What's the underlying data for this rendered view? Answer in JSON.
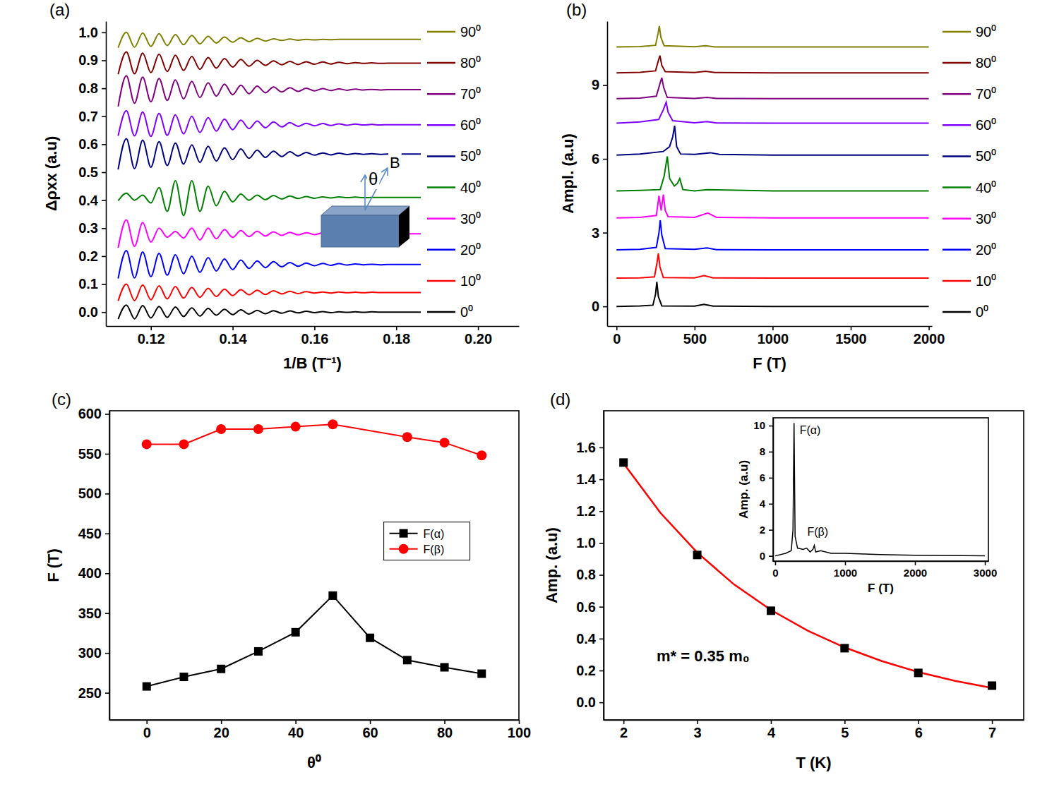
{
  "chart_data": [
    {
      "type": "line",
      "panel_label": "(a)",
      "x_label": "1/B (T⁻¹)",
      "y_label": "Δρxx (a.u)",
      "x": [
        0.112,
        0.114,
        0.116,
        0.118,
        0.12,
        0.122,
        0.124,
        0.126,
        0.128,
        0.13,
        0.132,
        0.134,
        0.136,
        0.138,
        0.14,
        0.142,
        0.144,
        0.146,
        0.148,
        0.15,
        0.152,
        0.154,
        0.156,
        0.158,
        0.16,
        0.162,
        0.164,
        0.166,
        0.168,
        0.17,
        0.172,
        0.174,
        0.176,
        0.178,
        0.18,
        0.182,
        0.184,
        0.186
      ],
      "xlim": [
        0.109,
        0.21
      ],
      "xticks": [
        0.12,
        0.14,
        0.16,
        0.18,
        {
          "value": 0.2,
          "label": "0.20"
        }
      ],
      "ylim": [
        -0.05,
        1.04
      ],
      "yticks": [
        {
          "value": 0,
          "label": "0.0"
        },
        0.1,
        0.2,
        0.3,
        0.4,
        0.5,
        0.6,
        0.7,
        0.8,
        0.9,
        {
          "value": 1,
          "label": "1.0"
        }
      ],
      "legend": "right",
      "annotations": [
        "θ",
        "B"
      ],
      "series": [
        {
          "name": "0⁰",
          "color": "#000000",
          "values": [
            -0.025,
            0.025,
            -0.024,
            0.023,
            -0.021,
            0.02,
            -0.019,
            0.018,
            -0.016,
            0.015,
            -0.014,
            0.013,
            -0.011,
            0.01,
            -0.009,
            0.008,
            -0.007,
            0.006,
            -0.006,
            0.005,
            -0.004,
            0.004,
            -0.003,
            0.003,
            -0.002,
            0.002,
            -0.002,
            0.001,
            -0.001,
            0.001,
            -0.001,
            0.001,
            0,
            0,
            0,
            0,
            0,
            0
          ]
        },
        {
          "name": "10⁰",
          "color": "#ff0000",
          "values": [
            0.04,
            0.1,
            0.041,
            0.097,
            0.044,
            0.094,
            0.047,
            0.091,
            0.05,
            0.088,
            0.053,
            0.085,
            0.056,
            0.082,
            0.059,
            0.08,
            0.062,
            0.078,
            0.063,
            0.076,
            0.065,
            0.074,
            0.066,
            0.073,
            0.068,
            0.072,
            0.068,
            0.072,
            0.069,
            0.071,
            0.069,
            0.071,
            0.07,
            0.07,
            0.07,
            0.07,
            0.07,
            0.07
          ]
        },
        {
          "name": "20⁰",
          "color": "#0000ff",
          "values": [
            0.12,
            0.22,
            0.122,
            0.215,
            0.127,
            0.21,
            0.132,
            0.205,
            0.137,
            0.2,
            0.142,
            0.195,
            0.147,
            0.19,
            0.152,
            0.186,
            0.156,
            0.183,
            0.159,
            0.18,
            0.162,
            0.177,
            0.164,
            0.175,
            0.166,
            0.174,
            0.167,
            0.173,
            0.168,
            0.172,
            0.169,
            0.171,
            0.169,
            0.17,
            0.17,
            0.17,
            0.17,
            0.17
          ]
        },
        {
          "name": "30⁰",
          "color": "#ff00ff",
          "values": [
            0.23,
            0.33,
            0.235,
            0.32,
            0.25,
            0.3,
            0.268,
            0.288,
            0.265,
            0.3,
            0.258,
            0.3,
            0.262,
            0.295,
            0.267,
            0.291,
            0.27,
            0.289,
            0.272,
            0.287,
            0.274,
            0.285,
            0.276,
            0.284,
            0.277,
            0.283,
            0.278,
            0.282,
            0.278,
            0.281,
            0.279,
            0.281,
            0.28,
            0.28,
            0.28,
            0.28,
            0.28,
            0.28
          ]
        },
        {
          "name": "40⁰",
          "color": "#008000",
          "values": [
            0.398,
            0.425,
            0.4,
            0.418,
            0.39,
            0.445,
            0.36,
            0.47,
            0.345,
            0.47,
            0.36,
            0.45,
            0.38,
            0.432,
            0.394,
            0.422,
            0.4,
            0.418,
            0.402,
            0.417,
            0.404,
            0.415,
            0.406,
            0.413,
            0.407,
            0.412,
            0.408,
            0.412,
            0.409,
            0.411,
            0.409,
            0.41,
            0.41,
            0.41,
            0.41,
            0.41,
            0.41,
            0.41
          ]
        },
        {
          "name": "50⁰",
          "color": "#000080",
          "values": [
            0.51,
            0.62,
            0.513,
            0.615,
            0.518,
            0.609,
            0.524,
            0.604,
            0.529,
            0.598,
            0.535,
            0.593,
            0.54,
            0.587,
            0.545,
            0.583,
            0.55,
            0.579,
            0.553,
            0.575,
            0.556,
            0.573,
            0.558,
            0.571,
            0.561,
            0.569,
            0.562,
            0.568,
            0.563,
            0.567,
            0.564,
            0.566,
            0.564,
            0.565,
            0.565,
            0.565,
            0.565,
            0.565
          ]
        },
        {
          "name": "60⁰",
          "color": "#8000ff",
          "values": [
            0.63,
            0.72,
            0.63,
            0.715,
            0.628,
            0.71,
            0.632,
            0.705,
            0.637,
            0.7,
            0.642,
            0.695,
            0.647,
            0.69,
            0.652,
            0.686,
            0.656,
            0.683,
            0.659,
            0.68,
            0.662,
            0.677,
            0.664,
            0.675,
            0.666,
            0.674,
            0.667,
            0.673,
            0.668,
            0.672,
            0.669,
            0.671,
            0.669,
            0.67,
            0.67,
            0.67,
            0.67,
            0.67
          ]
        },
        {
          "name": "70⁰",
          "color": "#800080",
          "values": [
            0.735,
            0.845,
            0.747,
            0.84,
            0.752,
            0.835,
            0.757,
            0.83,
            0.762,
            0.825,
            0.767,
            0.82,
            0.772,
            0.815,
            0.777,
            0.811,
            0.781,
            0.808,
            0.784,
            0.805,
            0.787,
            0.802,
            0.789,
            0.8,
            0.791,
            0.799,
            0.792,
            0.798,
            0.793,
            0.797,
            0.794,
            0.796,
            0.794,
            0.795,
            0.795,
            0.795,
            0.795,
            0.795
          ]
        },
        {
          "name": "80⁰",
          "color": "#800000",
          "values": [
            0.85,
            0.93,
            0.852,
            0.926,
            0.856,
            0.922,
            0.86,
            0.918,
            0.864,
            0.914,
            0.868,
            0.91,
            0.872,
            0.906,
            0.876,
            0.903,
            0.879,
            0.9,
            0.882,
            0.898,
            0.884,
            0.896,
            0.885,
            0.895,
            0.886,
            0.894,
            0.887,
            0.893,
            0.888,
            0.892,
            0.889,
            0.891,
            0.889,
            0.89,
            0.89,
            0.89,
            0.89,
            0.89
          ]
        },
        {
          "name": "90⁰",
          "color": "#808000",
          "values": [
            0.945,
            1.0,
            0.947,
            0.998,
            0.95,
            0.995,
            0.953,
            0.992,
            0.956,
            0.989,
            0.959,
            0.986,
            0.962,
            0.983,
            0.965,
            0.981,
            0.967,
            0.979,
            0.969,
            0.977,
            0.971,
            0.976,
            0.972,
            0.975,
            0.973,
            0.975,
            0.974,
            0.975,
            0.975,
            0.975,
            0.975,
            0.975,
            0.975,
            0.975,
            0.975,
            0.975,
            0.975,
            0.975
          ]
        }
      ]
    },
    {
      "type": "line",
      "panel_label": "(b)",
      "x_label": "F (T)",
      "y_label": "Ampl. (a.u)",
      "xlim": [
        -60,
        2020
      ],
      "xticks": [
        0,
        500,
        1000,
        1500,
        2000
      ],
      "ylim": [
        -0.8,
        11.6
      ],
      "yticks": [
        0,
        3,
        6,
        9
      ],
      "legend": "right",
      "series": [
        {
          "name": "0⁰",
          "color": "#000000",
          "x": [
            0,
            150,
            233,
            250,
            258,
            268,
            290,
            500,
            560,
            620,
            1000,
            2000
          ],
          "values": [
            0,
            0.02,
            0.05,
            0.5,
            1.0,
            0.4,
            0.02,
            0.01,
            0.08,
            0.01,
            0,
            0
          ]
        },
        {
          "name": "10⁰",
          "color": "#ff0000",
          "x": [
            0,
            150,
            243,
            260,
            268,
            278,
            300,
            500,
            560,
            620,
            1000,
            2000
          ],
          "values": [
            1.15,
            1.16,
            1.2,
            1.8,
            2.15,
            1.6,
            1.17,
            1.16,
            1.25,
            1.16,
            1.15,
            1.15
          ]
        },
        {
          "name": "20⁰",
          "color": "#0000ff",
          "x": [
            0,
            150,
            255,
            272,
            280,
            290,
            312,
            500,
            580,
            640,
            1000,
            2000
          ],
          "values": [
            2.3,
            2.32,
            2.4,
            3.0,
            3.5,
            2.9,
            2.35,
            2.32,
            2.38,
            2.31,
            2.3,
            2.3
          ]
        },
        {
          "name": "30⁰",
          "color": "#ff00ff",
          "x": [
            0,
            150,
            255,
            272,
            286,
            300,
            312,
            330,
            500,
            585,
            640,
            1000,
            2000
          ],
          "values": [
            3.6,
            3.62,
            3.7,
            4.5,
            3.9,
            4.55,
            3.9,
            3.65,
            3.62,
            3.8,
            3.62,
            3.6,
            3.6
          ]
        },
        {
          "name": "40⁰",
          "color": "#008000",
          "x": [
            0,
            150,
            280,
            305,
            325,
            340,
            370,
            390,
            405,
            425,
            500,
            580,
            1000,
            2000
          ],
          "values": [
            4.7,
            4.72,
            4.75,
            5.3,
            6.1,
            5.2,
            4.9,
            5.0,
            5.2,
            4.75,
            4.7,
            4.75,
            4.7,
            4.7
          ]
        },
        {
          "name": "50⁰",
          "color": "#000080",
          "x": [
            0,
            150,
            300,
            340,
            360,
            372,
            385,
            410,
            500,
            600,
            660,
            1000,
            2000
          ],
          "values": [
            6.15,
            6.2,
            6.3,
            6.5,
            6.9,
            7.35,
            6.5,
            6.2,
            6.18,
            6.25,
            6.18,
            6.15,
            6.15
          ]
        },
        {
          "name": "60⁰",
          "color": "#8000ff",
          "x": [
            0,
            150,
            270,
            300,
            318,
            330,
            360,
            500,
            580,
            640,
            1000,
            2000
          ],
          "values": [
            7.45,
            7.5,
            7.6,
            8.0,
            8.3,
            7.9,
            7.55,
            7.47,
            7.52,
            7.46,
            7.45,
            7.45
          ]
        },
        {
          "name": "70⁰",
          "color": "#800080",
          "x": [
            0,
            150,
            255,
            280,
            290,
            302,
            325,
            500,
            580,
            640,
            1000,
            2000
          ],
          "values": [
            8.45,
            8.47,
            8.55,
            9.1,
            9.3,
            8.9,
            8.5,
            8.46,
            8.5,
            8.46,
            8.45,
            8.45
          ]
        },
        {
          "name": "80⁰",
          "color": "#800000",
          "x": [
            0,
            150,
            250,
            268,
            278,
            290,
            312,
            500,
            570,
            630,
            1000,
            2000
          ],
          "values": [
            9.5,
            9.52,
            9.58,
            10.0,
            10.2,
            9.8,
            9.55,
            9.51,
            9.56,
            9.51,
            9.5,
            9.5
          ]
        },
        {
          "name": "90⁰",
          "color": "#808000",
          "x": [
            0,
            150,
            250,
            266,
            274,
            284,
            305,
            500,
            570,
            630,
            1000,
            2000
          ],
          "values": [
            10.55,
            10.57,
            10.62,
            11.1,
            11.4,
            10.95,
            10.6,
            10.56,
            10.6,
            10.55,
            10.55,
            10.55
          ]
        }
      ]
    },
    {
      "type": "line",
      "panel_label": "(c)",
      "x_label": "θ⁰",
      "y_label": "F (T)",
      "x": [
        0,
        10,
        20,
        30,
        40,
        50,
        60,
        70,
        80,
        90
      ],
      "xlim": [
        -10,
        100
      ],
      "xticks": [
        0,
        20,
        40,
        60,
        80,
        100
      ],
      "ylim": [
        216,
        604
      ],
      "yticks": [
        250,
        300,
        350,
        400,
        450,
        500,
        550,
        600
      ],
      "legend": "upper right",
      "series": [
        {
          "name": "F(α)",
          "color": "#000000",
          "marker": "square",
          "values": [
            258,
            270,
            280,
            302,
            326,
            372,
            319,
            291,
            282,
            274
          ]
        },
        {
          "name": "F(β)",
          "color": "#ff0000",
          "marker": "circle",
          "x": [
            0,
            10,
            20,
            30,
            40,
            50,
            70,
            80,
            90
          ],
          "values": [
            562,
            562,
            581,
            581,
            584,
            587,
            571,
            564,
            548
          ]
        }
      ]
    },
    {
      "type": "scatter",
      "panel_label": "(d)",
      "x_label": "T (K)",
      "y_label": "Amp. (a.u)",
      "xlim": [
        1.73,
        7.43
      ],
      "xticks": [
        2,
        3,
        4,
        5,
        6,
        7
      ],
      "ylim": [
        -0.11,
        1.83
      ],
      "yticks": [
        {
          "value": 0,
          "label": "0.0"
        },
        0.2,
        0.4,
        0.6,
        0.8,
        {
          "value": 1,
          "label": "1.0"
        },
        1.2,
        1.4,
        1.6
      ],
      "annotations": [
        "m* = 0.35 m₀"
      ],
      "series": [
        {
          "type": "scatter",
          "marker": "square",
          "color": "#000000",
          "x": [
            2,
            3,
            4,
            5,
            6,
            7
          ],
          "values": [
            1.505,
            0.925,
            0.575,
            0.34,
            0.185,
            0.105
          ]
        },
        {
          "type": "line",
          "color": "#ff0000",
          "x": [
            2,
            2.5,
            3,
            3.5,
            4,
            4.5,
            5,
            5.5,
            6,
            6.5,
            7
          ],
          "values": [
            1.5,
            1.19,
            0.94,
            0.74,
            0.58,
            0.45,
            0.345,
            0.26,
            0.19,
            0.135,
            0.09
          ]
        }
      ]
    },
    {
      "type": "line",
      "x_label": "F (T)",
      "y_label": "Amp. (a.u)",
      "color": "#000000",
      "x": [
        0,
        150,
        230,
        255,
        270,
        285,
        320,
        400,
        450,
        500,
        540,
        560,
        580,
        650,
        800,
        1000,
        1500,
        2000,
        3000
      ],
      "xlim": [
        -30,
        3050
      ],
      "xticks": [
        0,
        1000,
        2000,
        3000
      ],
      "ylim": [
        -0.4,
        10.6
      ],
      "yticks": [
        0,
        2,
        4,
        6,
        8,
        10
      ],
      "annotations": [
        "F(α)",
        "F(β)"
      ],
      "series": [
        {
          "values": [
            0,
            0.2,
            0.4,
            2.0,
            10.2,
            1.5,
            0.6,
            0.5,
            0.6,
            0.3,
            0.5,
            0.8,
            0.3,
            0.4,
            0.2,
            0.2,
            0.1,
            0.05,
            0
          ]
        }
      ]
    }
  ]
}
